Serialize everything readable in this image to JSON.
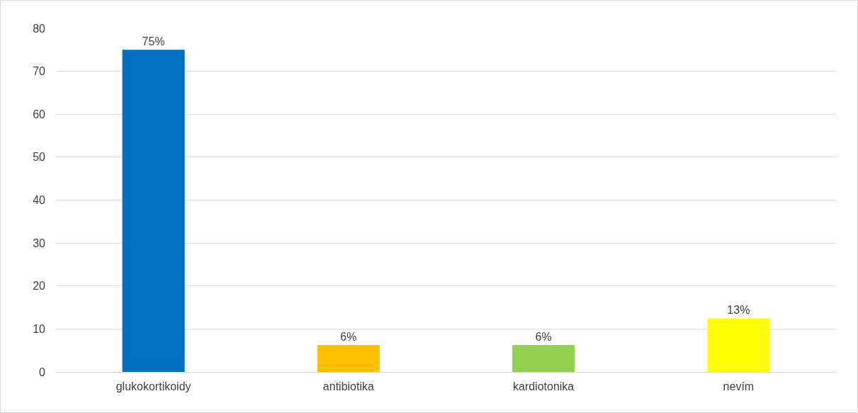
{
  "chart_data": {
    "type": "bar",
    "categories": [
      "glukokortikoidy",
      "antibiotika",
      "kardiotonika",
      "nevím"
    ],
    "values": [
      75,
      6.25,
      6.25,
      12.5
    ],
    "colors": [
      "#0070c0",
      "#ffc000",
      "#92d050",
      "#ffff00"
    ],
    "value_labels": [
      "75%",
      "6%",
      "6%",
      "13%"
    ],
    "ylim": [
      0,
      80
    ],
    "yticks": [
      0,
      10,
      20,
      30,
      40,
      50,
      60,
      70,
      80
    ],
    "grid": "y",
    "legend": false
  }
}
